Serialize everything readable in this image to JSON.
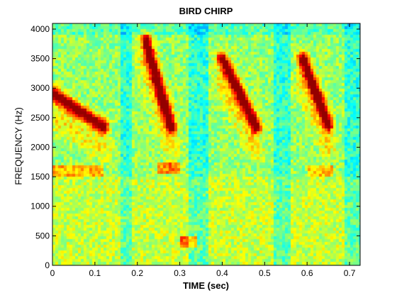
{
  "chart_data": {
    "type": "heatmap",
    "title": "BIRD CHIRP",
    "xlabel": "TIME (sec)",
    "ylabel": "FREQUENCY (Hz)",
    "xlim": [
      0,
      0.725
    ],
    "ylim": [
      0,
      4096
    ],
    "x_ticks": [
      0,
      0.1,
      0.2,
      0.3,
      0.4,
      0.5,
      0.6,
      0.7
    ],
    "x_tick_labels": [
      "0",
      "0.1",
      "0.2",
      "0.3",
      "0.4",
      "0.5",
      "0.6",
      "0.7"
    ],
    "y_ticks": [
      0,
      500,
      1000,
      1500,
      2000,
      2500,
      3000,
      3500,
      4000
    ],
    "y_tick_labels": [
      "0",
      "500",
      "1000",
      "1500",
      "2000",
      "2500",
      "3000",
      "3500",
      "4000"
    ],
    "colormap": "jet",
    "grid": false,
    "chirps": [
      {
        "t_start": 0.0,
        "t_end": 0.12,
        "f_start": 2900,
        "f_end": 2350
      },
      {
        "t_start": 0.22,
        "t_end": 0.28,
        "f_start": 3800,
        "f_end": 2350
      },
      {
        "t_start": 0.4,
        "t_end": 0.48,
        "f_start": 3500,
        "f_end": 2350
      },
      {
        "t_start": 0.59,
        "t_end": 0.65,
        "f_start": 3500,
        "f_end": 2400
      }
    ]
  }
}
